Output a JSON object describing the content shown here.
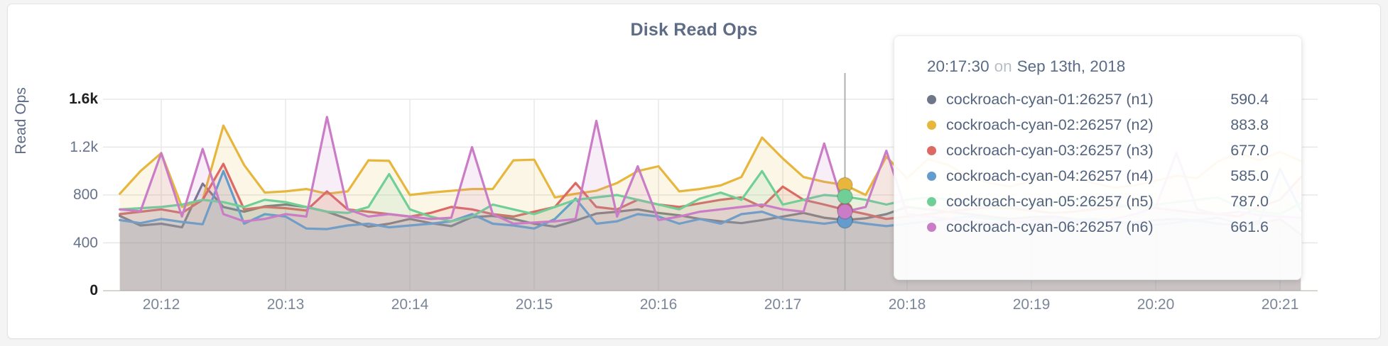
{
  "panel": {
    "title": "Disk Read Ops"
  },
  "tooltip": {
    "time": "20:17:30",
    "conjunction": "on",
    "date": "Sep 13th, 2018",
    "rows": [
      {
        "label": "cockroach-cyan-01:26257 (n1)",
        "value": "590.4",
        "color": "#6e7689"
      },
      {
        "label": "cockroach-cyan-02:26257 (n2)",
        "value": "883.8",
        "color": "#e7b63d"
      },
      {
        "label": "cockroach-cyan-03:26257 (n3)",
        "value": "677.0",
        "color": "#dc6a63"
      },
      {
        "label": "cockroach-cyan-04:26257 (n4)",
        "value": "585.0",
        "color": "#649ccd"
      },
      {
        "label": "cockroach-cyan-05:26257 (n5)",
        "value": "787.0",
        "color": "#70cf97"
      },
      {
        "label": "cockroach-cyan-06:26257 (n6)",
        "value": "661.6",
        "color": "#ca7dc6"
      }
    ]
  },
  "chart_data": {
    "type": "line",
    "title": "Disk Read Ops",
    "xlabel": "",
    "ylabel": "Read Ops",
    "ylim": [
      0,
      1600
    ],
    "grid": true,
    "legend_position": "none",
    "y_ticks": [
      {
        "label": "1.6k",
        "value": 1600,
        "emphasis": true
      },
      {
        "label": "1.2k",
        "value": 1200,
        "emphasis": false
      },
      {
        "label": "800",
        "value": 800,
        "emphasis": false
      },
      {
        "label": "400",
        "value": 400,
        "emphasis": false
      },
      {
        "label": "0",
        "value": 0,
        "emphasis": true
      }
    ],
    "x_ticks": [
      {
        "label": "20:12",
        "t": 720
      },
      {
        "label": "20:13",
        "t": 780
      },
      {
        "label": "20:14",
        "t": 840
      },
      {
        "label": "20:15",
        "t": 900
      },
      {
        "label": "20:16",
        "t": 960
      },
      {
        "label": "20:17",
        "t": 1020
      },
      {
        "label": "20:18",
        "t": 1080
      },
      {
        "label": "20:19",
        "t": 1140
      },
      {
        "label": "20:20",
        "t": 1200
      },
      {
        "label": "20:21",
        "t": 1260
      }
    ],
    "x_start_seconds": 700,
    "x_step_seconds": 10,
    "x_start_label": "20:11:40",
    "hover": {
      "index": 35,
      "time": "20:17:30"
    },
    "series": [
      {
        "name": "cockroach-cyan-01:26257 (n1)",
        "node": "n1",
        "color": "#6e7689",
        "values": [
          625,
          545,
          560,
          530,
          895,
          700,
          660,
          705,
          720,
          700,
          660,
          600,
          535,
          560,
          600,
          565,
          540,
          615,
          625,
          600,
          560,
          535,
          585,
          645,
          660,
          680,
          650,
          630,
          600,
          580,
          565,
          590,
          620,
          650,
          610,
          590.4,
          605,
          640,
          700,
          680,
          660,
          640,
          620,
          600,
          615,
          620,
          600,
          580,
          565,
          570,
          590,
          600,
          585,
          560,
          545,
          560,
          600,
          470
        ]
      },
      {
        "name": "cockroach-cyan-02:26257 (n2)",
        "node": "n2",
        "color": "#e7b63d",
        "values": [
          810,
          1000,
          1150,
          700,
          760,
          1380,
          1050,
          820,
          830,
          850,
          810,
          830,
          1090,
          1085,
          800,
          820,
          835,
          850,
          850,
          1090,
          1095,
          780,
          810,
          835,
          900,
          1000,
          1040,
          830,
          850,
          880,
          950,
          1280,
          1105,
          950,
          910,
          883.8,
          800,
          1120,
          940,
          1100,
          1050,
          950,
          900,
          870,
          920,
          980,
          940,
          900,
          860,
          880,
          920,
          960,
          940,
          1080,
          1150,
          1090,
          1160,
          1085
        ]
      },
      {
        "name": "cockroach-cyan-03:26257 (n3)",
        "node": "n3",
        "color": "#dc6a63",
        "values": [
          640,
          660,
          680,
          650,
          760,
          1060,
          680,
          700,
          690,
          670,
          830,
          680,
          660,
          640,
          620,
          650,
          700,
          680,
          640,
          620,
          660,
          700,
          900,
          700,
          680,
          760,
          720,
          700,
          730,
          760,
          780,
          700,
          870,
          760,
          720,
          677,
          640,
          600,
          620,
          640,
          660,
          680,
          700,
          690,
          670,
          650,
          660,
          680,
          700,
          710,
          690,
          670,
          650,
          640,
          620,
          700,
          760,
          950
        ]
      },
      {
        "name": "cockroach-cyan-04:26257 (n4)",
        "node": "n4",
        "color": "#649ccd",
        "values": [
          590,
          565,
          600,
          575,
          555,
          1000,
          560,
          640,
          620,
          520,
          515,
          545,
          560,
          530,
          545,
          560,
          580,
          640,
          560,
          545,
          520,
          600,
          770,
          560,
          580,
          640,
          620,
          560,
          600,
          560,
          640,
          660,
          600,
          580,
          560,
          585,
          560,
          540,
          560,
          580,
          600,
          620,
          600,
          580,
          560,
          570,
          590,
          600,
          580,
          560,
          550,
          570,
          590,
          610,
          560,
          580,
          1020,
          670
        ]
      },
      {
        "name": "cockroach-cyan-05:26257 (n5)",
        "node": "n5",
        "color": "#70cf97",
        "values": [
          680,
          690,
          700,
          720,
          760,
          740,
          700,
          760,
          740,
          700,
          660,
          650,
          700,
          975,
          680,
          620,
          580,
          620,
          720,
          680,
          640,
          700,
          760,
          780,
          800,
          760,
          720,
          680,
          770,
          820,
          760,
          1000,
          720,
          760,
          800,
          787,
          760,
          720,
          760,
          780,
          760,
          740,
          720,
          700,
          720,
          740,
          760,
          740,
          720,
          700,
          720,
          740,
          760,
          780,
          700,
          660,
          640,
          730
        ]
      },
      {
        "name": "cockroach-cyan-06:26257 (n6)",
        "node": "n6",
        "color": "#ca7dc6",
        "values": [
          680,
          665,
          1150,
          620,
          1185,
          640,
          580,
          600,
          640,
          620,
          1452,
          680,
          620,
          640,
          620,
          600,
          610,
          1200,
          640,
          560,
          570,
          580,
          600,
          1420,
          620,
          1040,
          590,
          620,
          660,
          680,
          700,
          720,
          680,
          660,
          1230,
          661.6,
          700,
          1170,
          640,
          620,
          600,
          580,
          560,
          570,
          590,
          610,
          580,
          560,
          600,
          640,
          700,
          1150,
          680,
          640,
          660,
          630,
          620,
          610
        ]
      }
    ]
  }
}
